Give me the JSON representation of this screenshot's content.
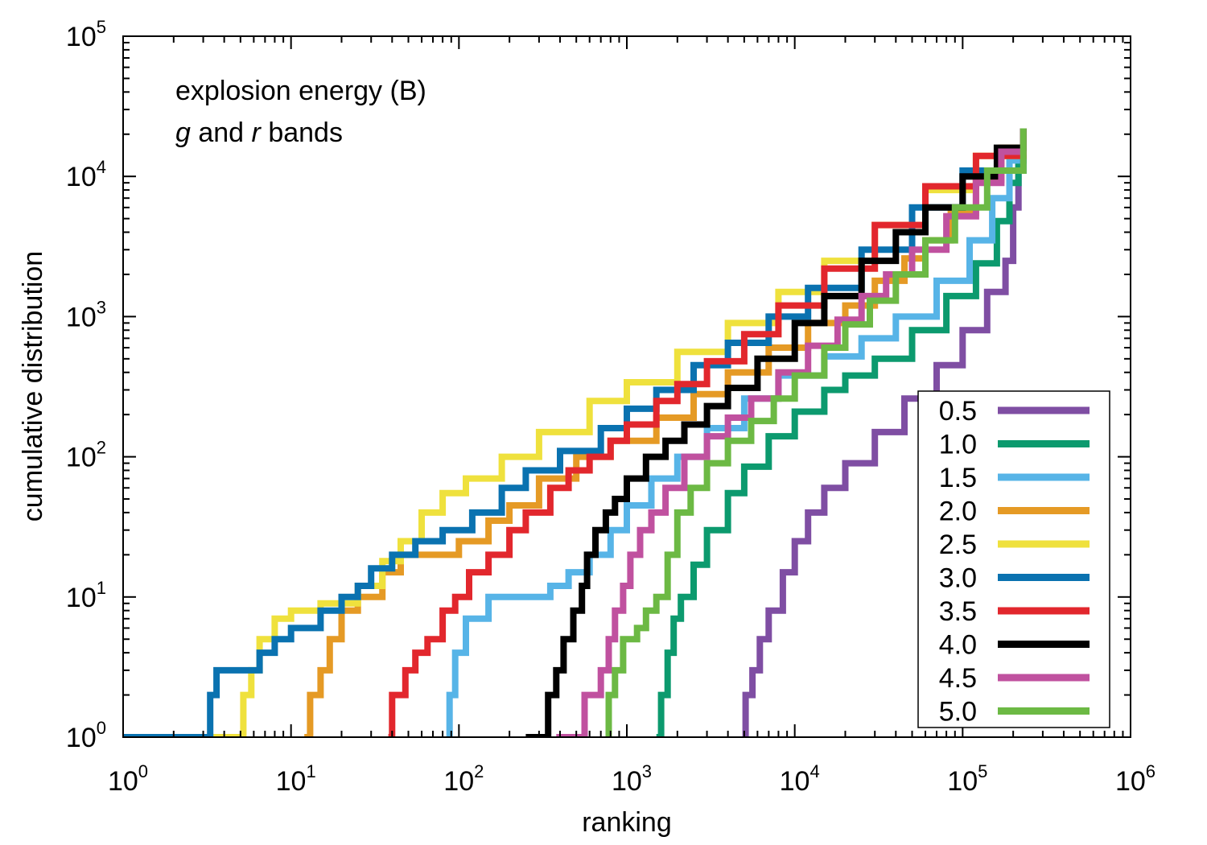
{
  "chart_data": {
    "type": "line",
    "xlabel": "ranking",
    "ylabel": "cumulative distribution",
    "xscale": "log",
    "yscale": "log",
    "xlim": [
      1,
      1000000
    ],
    "ylim": [
      1,
      100000
    ],
    "x_ticks": [
      {
        "base": "10",
        "exp": "0"
      },
      {
        "base": "10",
        "exp": "1"
      },
      {
        "base": "10",
        "exp": "2"
      },
      {
        "base": "10",
        "exp": "3"
      },
      {
        "base": "10",
        "exp": "4"
      },
      {
        "base": "10",
        "exp": "5"
      },
      {
        "base": "10",
        "exp": "6"
      }
    ],
    "y_ticks": [
      {
        "base": "10",
        "exp": "0"
      },
      {
        "base": "10",
        "exp": "1"
      },
      {
        "base": "10",
        "exp": "2"
      },
      {
        "base": "10",
        "exp": "3"
      },
      {
        "base": "10",
        "exp": "4"
      },
      {
        "base": "10",
        "exp": "5"
      }
    ],
    "annotation": {
      "line1": "explosion energy (B)",
      "line2_g": "g",
      "line2_and": " and ",
      "line2_r": "r",
      "line2_rest": " bands"
    },
    "legend_position": "bottom-right",
    "grid": false,
    "series": [
      {
        "name": "0.5",
        "color": "#7f4ea3",
        "points": [
          [
            4900,
            1
          ],
          [
            5100,
            2
          ],
          [
            5600,
            3
          ],
          [
            6200,
            5
          ],
          [
            7000,
            8
          ],
          [
            8500,
            15
          ],
          [
            10000,
            25
          ],
          [
            12000,
            40
          ],
          [
            15000,
            60
          ],
          [
            20000,
            90
          ],
          [
            30000,
            150
          ],
          [
            45000,
            260
          ],
          [
            70000,
            450
          ],
          [
            100000,
            800
          ],
          [
            140000,
            1500
          ],
          [
            180000,
            2500
          ],
          [
            200000,
            6000
          ],
          [
            215000,
            15000
          ],
          [
            230000,
            22000
          ]
        ]
      },
      {
        "name": "1.0",
        "color": "#0c9a6e",
        "points": [
          [
            1500,
            1
          ],
          [
            1600,
            2
          ],
          [
            1750,
            4
          ],
          [
            1900,
            7
          ],
          [
            2100,
            10
          ],
          [
            2500,
            17
          ],
          [
            3000,
            30
          ],
          [
            4000,
            55
          ],
          [
            5000,
            85
          ],
          [
            7000,
            140
          ],
          [
            10000,
            210
          ],
          [
            15000,
            300
          ],
          [
            20000,
            380
          ],
          [
            30000,
            500
          ],
          [
            50000,
            800
          ],
          [
            80000,
            1400
          ],
          [
            120000,
            2400
          ],
          [
            160000,
            4800
          ],
          [
            190000,
            9000
          ],
          [
            215000,
            16000
          ],
          [
            230000,
            22000
          ]
        ]
      },
      {
        "name": "1.5",
        "color": "#57b4e7",
        "points": [
          [
            85,
            1
          ],
          [
            88,
            2
          ],
          [
            95,
            4
          ],
          [
            110,
            7
          ],
          [
            150,
            10
          ],
          [
            250,
            10
          ],
          [
            350,
            12
          ],
          [
            450,
            15
          ],
          [
            600,
            20
          ],
          [
            800,
            30
          ],
          [
            1000,
            45
          ],
          [
            1400,
            70
          ],
          [
            2000,
            100
          ],
          [
            3000,
            160
          ],
          [
            5000,
            260
          ],
          [
            8000,
            380
          ],
          [
            15000,
            520
          ],
          [
            25000,
            700
          ],
          [
            40000,
            1000
          ],
          [
            70000,
            1800
          ],
          [
            110000,
            3500
          ],
          [
            150000,
            7000
          ],
          [
            190000,
            13000
          ],
          [
            230000,
            22000
          ]
        ]
      },
      {
        "name": "2.0",
        "color": "#e59a25",
        "points": [
          [
            12,
            1
          ],
          [
            13,
            2
          ],
          [
            15,
            3
          ],
          [
            17,
            5
          ],
          [
            20,
            8
          ],
          [
            25,
            10
          ],
          [
            35,
            15
          ],
          [
            45,
            20
          ],
          [
            70,
            20
          ],
          [
            100,
            25
          ],
          [
            150,
            35
          ],
          [
            200,
            45
          ],
          [
            300,
            70
          ],
          [
            500,
            100
          ],
          [
            800,
            130
          ],
          [
            1500,
            190
          ],
          [
            2500,
            280
          ],
          [
            4000,
            400
          ],
          [
            7000,
            600
          ],
          [
            12000,
            900
          ],
          [
            20000,
            1200
          ],
          [
            30000,
            1800
          ],
          [
            45000,
            2600
          ],
          [
            60000,
            3500
          ],
          [
            85000,
            5500
          ],
          [
            120000,
            9500
          ],
          [
            170000,
            16000
          ],
          [
            230000,
            22000
          ]
        ]
      },
      {
        "name": "2.5",
        "color": "#efe13d",
        "points": [
          [
            1,
            1
          ],
          [
            5,
            1
          ],
          [
            5.2,
            2
          ],
          [
            5.8,
            3
          ],
          [
            6.5,
            5
          ],
          [
            8,
            7
          ],
          [
            10,
            8
          ],
          [
            15,
            9
          ],
          [
            25,
            12
          ],
          [
            35,
            18
          ],
          [
            45,
            25
          ],
          [
            60,
            40
          ],
          [
            80,
            55
          ],
          [
            110,
            70
          ],
          [
            180,
            100
          ],
          [
            300,
            150
          ],
          [
            600,
            250
          ],
          [
            1000,
            340
          ],
          [
            2000,
            560
          ],
          [
            4000,
            900
          ],
          [
            8000,
            1500
          ],
          [
            15000,
            2500
          ],
          [
            30000,
            4500
          ],
          [
            60000,
            8000
          ],
          [
            120000,
            14000
          ],
          [
            230000,
            22000
          ]
        ]
      },
      {
        "name": "3.0",
        "color": "#0a72b0",
        "points": [
          [
            1,
            1
          ],
          [
            3,
            1
          ],
          [
            3.3,
            2
          ],
          [
            3.6,
            3
          ],
          [
            6,
            3
          ],
          [
            6.5,
            4
          ],
          [
            8,
            5
          ],
          [
            10,
            6
          ],
          [
            15,
            8
          ],
          [
            20,
            10
          ],
          [
            25,
            12
          ],
          [
            30,
            16
          ],
          [
            40,
            20
          ],
          [
            55,
            25
          ],
          [
            80,
            30
          ],
          [
            120,
            40
          ],
          [
            180,
            60
          ],
          [
            250,
            80
          ],
          [
            400,
            110
          ],
          [
            700,
            160
          ],
          [
            1000,
            220
          ],
          [
            1500,
            300
          ],
          [
            2500,
            450
          ],
          [
            4000,
            650
          ],
          [
            7000,
            1000
          ],
          [
            12000,
            1600
          ],
          [
            25000,
            3000
          ],
          [
            50000,
            6000
          ],
          [
            100000,
            11000
          ],
          [
            230000,
            22000
          ]
        ]
      },
      {
        "name": "3.5",
        "color": "#e2272d",
        "points": [
          [
            38,
            1
          ],
          [
            40,
            2
          ],
          [
            48,
            3
          ],
          [
            55,
            4
          ],
          [
            65,
            5
          ],
          [
            80,
            8
          ],
          [
            95,
            10
          ],
          [
            115,
            15
          ],
          [
            150,
            20
          ],
          [
            200,
            30
          ],
          [
            250,
            40
          ],
          [
            350,
            60
          ],
          [
            450,
            80
          ],
          [
            600,
            100
          ],
          [
            800,
            130
          ],
          [
            1000,
            170
          ],
          [
            1500,
            250
          ],
          [
            2000,
            330
          ],
          [
            3000,
            480
          ],
          [
            5000,
            750
          ],
          [
            8000,
            1200
          ],
          [
            15000,
            2200
          ],
          [
            30000,
            4500
          ],
          [
            60000,
            8500
          ],
          [
            120000,
            14000
          ],
          [
            230000,
            22000
          ]
        ]
      },
      {
        "name": "4.0",
        "color": "#000000",
        "points": [
          [
            250,
            1
          ],
          [
            330,
            1
          ],
          [
            340,
            2
          ],
          [
            380,
            3
          ],
          [
            420,
            5
          ],
          [
            480,
            8
          ],
          [
            540,
            12
          ],
          [
            580,
            20
          ],
          [
            650,
            30
          ],
          [
            750,
            40
          ],
          [
            850,
            50
          ],
          [
            1000,
            70
          ],
          [
            1300,
            100
          ],
          [
            1700,
            130
          ],
          [
            2200,
            170
          ],
          [
            3000,
            230
          ],
          [
            4000,
            310
          ],
          [
            6000,
            500
          ],
          [
            10000,
            900
          ],
          [
            15000,
            1400
          ],
          [
            25000,
            2500
          ],
          [
            40000,
            4000
          ],
          [
            60000,
            6000
          ],
          [
            100000,
            10000
          ],
          [
            160000,
            16000
          ],
          [
            230000,
            22000
          ]
        ]
      },
      {
        "name": "4.5",
        "color": "#c0519f",
        "points": [
          [
            380,
            1
          ],
          [
            550,
            1
          ],
          [
            560,
            2
          ],
          [
            700,
            3
          ],
          [
            780,
            5
          ],
          [
            850,
            8
          ],
          [
            950,
            12
          ],
          [
            1050,
            20
          ],
          [
            1200,
            30
          ],
          [
            1400,
            40
          ],
          [
            1700,
            60
          ],
          [
            2200,
            100
          ],
          [
            3000,
            140
          ],
          [
            4000,
            190
          ],
          [
            5500,
            260
          ],
          [
            8000,
            400
          ],
          [
            12000,
            620
          ],
          [
            18000,
            950
          ],
          [
            25000,
            1400
          ],
          [
            35000,
            2000
          ],
          [
            50000,
            3000
          ],
          [
            80000,
            5200
          ],
          [
            120000,
            9000
          ],
          [
            170000,
            15000
          ],
          [
            230000,
            22000
          ]
        ]
      },
      {
        "name": "5.0",
        "color": "#6cb944",
        "points": [
          [
            750,
            1
          ],
          [
            780,
            2
          ],
          [
            850,
            3
          ],
          [
            950,
            5
          ],
          [
            1150,
            6
          ],
          [
            1300,
            8
          ],
          [
            1500,
            10
          ],
          [
            1750,
            20
          ],
          [
            2000,
            40
          ],
          [
            2400,
            60
          ],
          [
            3000,
            90
          ],
          [
            4000,
            130
          ],
          [
            5500,
            180
          ],
          [
            7500,
            260
          ],
          [
            10000,
            380
          ],
          [
            15000,
            600
          ],
          [
            20000,
            880
          ],
          [
            28000,
            1300
          ],
          [
            40000,
            2000
          ],
          [
            60000,
            3500
          ],
          [
            90000,
            6000
          ],
          [
            140000,
            11000
          ],
          [
            230000,
            22000
          ]
        ]
      }
    ]
  }
}
